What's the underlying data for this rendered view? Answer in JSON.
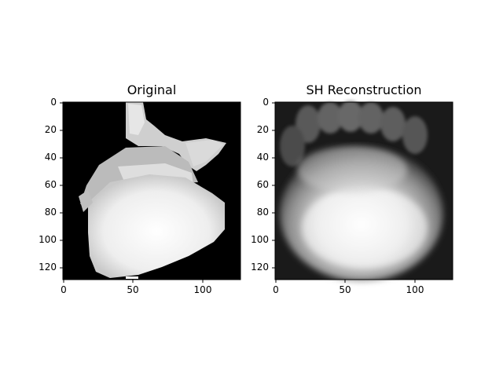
{
  "panels": [
    {
      "title": "Original",
      "x_ticks": [
        "0",
        "50",
        "100"
      ],
      "y_ticks": [
        "0",
        "20",
        "40",
        "60",
        "80",
        "100",
        "120"
      ],
      "image": "rendered-3d-shape-grayscale"
    },
    {
      "title": "SH Reconstruction",
      "x_ticks": [
        "0",
        "50",
        "100"
      ],
      "y_ticks": [
        "0",
        "20",
        "40",
        "60",
        "80",
        "100",
        "120"
      ],
      "image": "blurred-spherical-harmonics-reconstruction"
    }
  ],
  "colors": {
    "background": "#000000",
    "shape_light": "#f2f2f2",
    "shape_mid": "#bdbdbd",
    "recon_bg": "#1a1a1a"
  }
}
